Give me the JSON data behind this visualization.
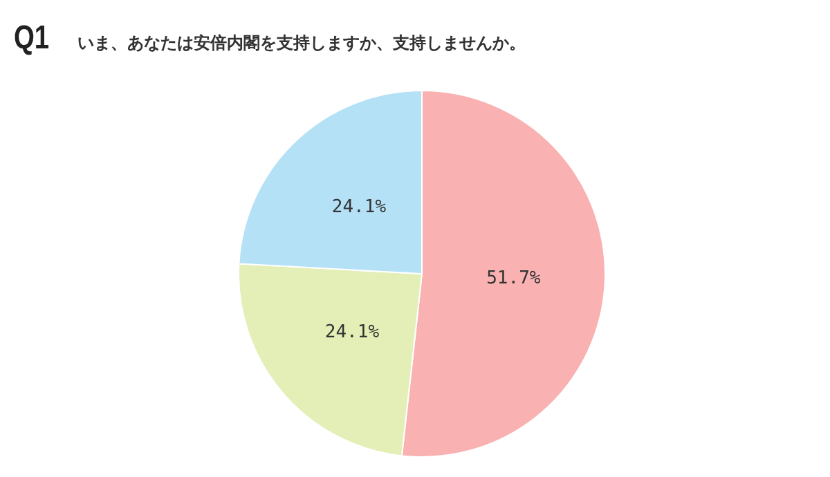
{
  "chart_data": {
    "type": "pie",
    "title": "Q1",
    "subtitle": "いま、あなたは安倍内閣を支持しますか、支持しませんか。",
    "categories": [
      null,
      null,
      null
    ],
    "values": [
      51.7,
      24.1,
      24.1
    ],
    "colors": [
      "#f9b1b2",
      "#e3efb7",
      "#b5e1f7"
    ],
    "value_labels": [
      "51.7%",
      "24.1%",
      "24.1%"
    ],
    "legend": false
  }
}
